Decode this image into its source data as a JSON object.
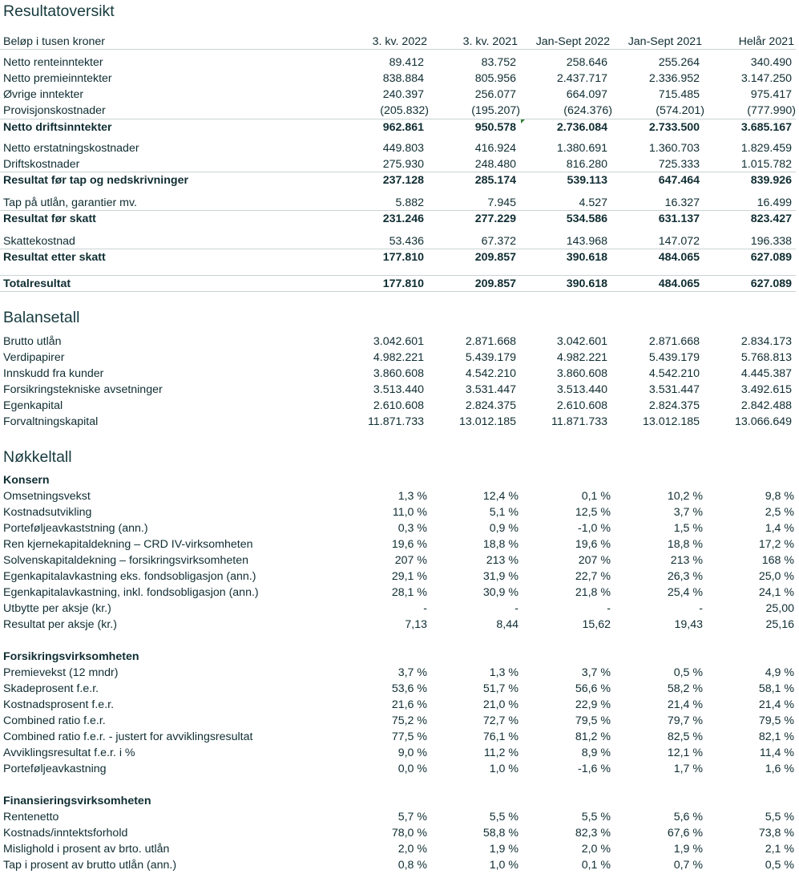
{
  "resultat": {
    "title": "Resultatoversikt",
    "header": [
      "Beløp i tusen kroner",
      "3. kv. 2022",
      "3. kv. 2021",
      "Jan-Sept 2022",
      "Jan-Sept 2021",
      "Helår  2021"
    ],
    "rows": [
      {
        "label": "Netto renteinntekter",
        "values": [
          "89.412",
          "83.752",
          "258.646",
          "255.264",
          "340.490"
        ]
      },
      {
        "label": "Netto premieinntekter",
        "values": [
          "838.884",
          "805.956",
          "2.437.717",
          "2.336.952",
          "3.147.250"
        ]
      },
      {
        "label": "Øvrige inntekter",
        "values": [
          "240.397",
          "256.077",
          "664.097",
          "715.485",
          "975.417"
        ]
      },
      {
        "label": "Provisjonskostnader",
        "values": [
          "(205.832)",
          "(195.207)",
          "(624.376)",
          "(574.201)",
          "(777.990)"
        ]
      },
      {
        "label": "Netto driftsinntekter",
        "values": [
          "962.861",
          "950.578",
          "2.736.084",
          "2.733.500",
          "3.685.167"
        ]
      },
      {
        "label": "Netto erstatningskostnader",
        "values": [
          "449.803",
          "416.924",
          "1.380.691",
          "1.360.703",
          "1.829.459"
        ]
      },
      {
        "label": "Driftskostnader",
        "values": [
          "275.930",
          "248.480",
          "816.280",
          "725.333",
          "1.015.782"
        ]
      },
      {
        "label": "Resultat før tap og nedskrivninger",
        "values": [
          "237.128",
          "285.174",
          "539.113",
          "647.464",
          "839.926"
        ]
      },
      {
        "label": "Tap på utlån, garantier mv.",
        "values": [
          "5.882",
          "7.945",
          "4.527",
          "16.327",
          "16.499"
        ]
      },
      {
        "label": "Resultat før skatt",
        "values": [
          "231.246",
          "277.229",
          "534.586",
          "631.137",
          "823.427"
        ]
      },
      {
        "label": "Skattekostnad",
        "values": [
          "53.436",
          "67.372",
          "143.968",
          "147.072",
          "196.338"
        ]
      },
      {
        "label": "Resultat etter skatt",
        "values": [
          "177.810",
          "209.857",
          "390.618",
          "484.065",
          "627.089"
        ]
      },
      {
        "label": "Totalresultat",
        "values": [
          "177.810",
          "209.857",
          "390.618",
          "484.065",
          "627.089"
        ]
      }
    ]
  },
  "balanse": {
    "title": "Balansetall",
    "rows": [
      {
        "label": "Brutto utlån",
        "values": [
          "3.042.601",
          "2.871.668",
          "3.042.601",
          "2.871.668",
          "2.834.173"
        ]
      },
      {
        "label": "Verdipapirer",
        "values": [
          "4.982.221",
          "5.439.179",
          "4.982.221",
          "5.439.179",
          "5.768.813"
        ]
      },
      {
        "label": "Innskudd fra kunder",
        "values": [
          "3.860.608",
          "4.542.210",
          "3.860.608",
          "4.542.210",
          "4.445.387"
        ]
      },
      {
        "label": "Forsikringstekniske avsetninger",
        "values": [
          "3.513.440",
          "3.531.447",
          "3.513.440",
          "3.531.447",
          "3.492.615"
        ]
      },
      {
        "label": "Egenkapital",
        "values": [
          "2.610.608",
          "2.824.375",
          "2.610.608",
          "2.824.375",
          "2.842.488"
        ]
      },
      {
        "label": "Forvaltningskapital",
        "values": [
          "11.871.733",
          "13.012.185",
          "11.871.733",
          "13.012.185",
          "13.066.649"
        ]
      }
    ]
  },
  "nokkeltall": {
    "title": "Nøkkeltall",
    "konsern": {
      "heading": "Konsern",
      "rows": [
        {
          "label": "Omsetningsvekst",
          "values": [
            "1,3 %",
            "12,4 %",
            "0,1 %",
            "10,2 %",
            "9,8 %"
          ]
        },
        {
          "label": "Kostnadsutvikling",
          "values": [
            "11,0 %",
            "5,1 %",
            "12,5 %",
            "3,7 %",
            "2,5 %"
          ]
        },
        {
          "label": "Porteføljeavkaststning (ann.)",
          "values": [
            "0,3 %",
            "0,9 %",
            "-1,0 %",
            "1,5 %",
            "1,4 %"
          ]
        },
        {
          "label": "Ren kjernekapitaldekning  – CRD IV-virksomheten",
          "values": [
            "19,6 %",
            "18,8 %",
            "19,6 %",
            "18,8 %",
            "17,2 %"
          ]
        },
        {
          "label": "Solvenskapitaldekning  – forsikringsvirksomheten",
          "values": [
            "207 %",
            "213 %",
            "207 %",
            "213 %",
            "168 %"
          ]
        },
        {
          "label": "Egenkapitalavkastning eks. fondsobligasjon (ann.)",
          "values": [
            "29,1 %",
            "31,9 %",
            "22,7 %",
            "26,3 %",
            "25,0 %"
          ]
        },
        {
          "label": "Egenkapitalavkastning, inkl. fondsobligasjon (ann.)",
          "values": [
            "28,1 %",
            "30,9 %",
            "21,8 %",
            "25,4 %",
            "24,1 %"
          ]
        },
        {
          "label": "Utbytte per aksje (kr.)",
          "values": [
            "-",
            "-",
            "-",
            "-",
            "25,00"
          ]
        },
        {
          "label": "Resultat per aksje (kr.)",
          "values": [
            "7,13",
            "8,44",
            "15,62",
            "19,43",
            "25,16"
          ]
        }
      ]
    },
    "forsikring": {
      "heading": "Forsikringsvirksomheten",
      "rows": [
        {
          "label": "Premievekst (12 mndr)",
          "values": [
            "3,7 %",
            "1,3 %",
            "3,7 %",
            "0,5 %",
            "4,9 %"
          ]
        },
        {
          "label": "Skadeprosent f.e.r.",
          "values": [
            "53,6 %",
            "51,7 %",
            "56,6 %",
            "58,2 %",
            "58,1 %"
          ]
        },
        {
          "label": "Kostnadsprosent f.e.r.",
          "values": [
            "21,6 %",
            "21,0 %",
            "22,9 %",
            "21,4 %",
            "21,4 %"
          ]
        },
        {
          "label": "Combined ratio f.e.r.",
          "values": [
            "75,2 %",
            "72,7 %",
            "79,5 %",
            "79,7 %",
            "79,5 %"
          ]
        },
        {
          "label": "Combined ratio f.e.r. - justert for avviklingsresultat",
          "values": [
            "77,5 %",
            "76,1 %",
            "81,2 %",
            "82,5 %",
            "82,1 %"
          ]
        },
        {
          "label": "Avviklingsresultat f.e.r. i %",
          "values": [
            "9,0 %",
            "11,2 %",
            "8,9 %",
            "12,1 %",
            "11,4 %"
          ]
        },
        {
          "label": "Porteføljeavkastning",
          "values": [
            "0,0 %",
            "1,0 %",
            "-1,6 %",
            "1,7 %",
            "1,6 %"
          ]
        }
      ]
    },
    "finansiering": {
      "heading": "Finansieringsvirksomheten",
      "rows": [
        {
          "label": "Rentenetto",
          "values": [
            "5,7 %",
            "5,5 %",
            "5,5 %",
            "5,6 %",
            "5,5 %"
          ]
        },
        {
          "label": "Kostnads/inntektsforhold",
          "values": [
            "78,0 %",
            "58,8 %",
            "82,3 %",
            "67,6 %",
            "73,8 %"
          ]
        },
        {
          "label": "Mislighold i prosent av brto. utlån",
          "values": [
            "2,0 %",
            "1,9 %",
            "2,0 %",
            "1,9 %",
            "2,1 %"
          ]
        },
        {
          "label": "Tap i prosent av brutto utlån (ann.)",
          "values": [
            "0,8 %",
            "1,0 %",
            "0,1 %",
            "0,7 %",
            "0,5 %"
          ]
        }
      ]
    }
  }
}
